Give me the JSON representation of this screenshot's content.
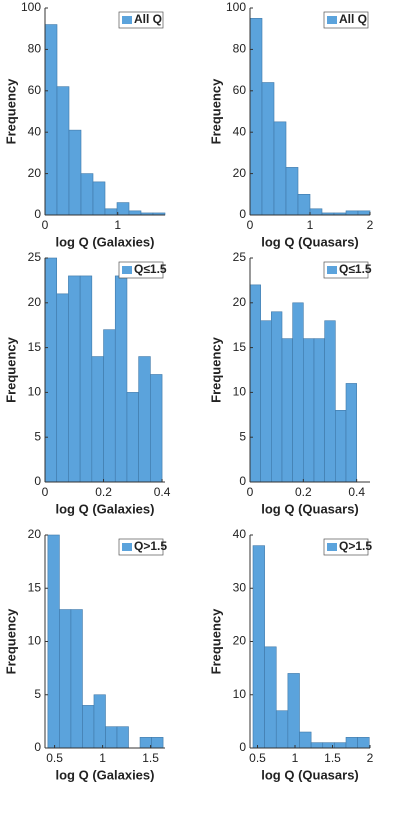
{
  "chart_data": [
    {
      "type": "histogram",
      "xlabel": "log Q (Galaxies)",
      "ylabel": "Frequency",
      "legend": "upper right",
      "bins": [
        0,
        0.165,
        0.33,
        0.495,
        0.66,
        0.825,
        0.99,
        1.155,
        1.32,
        1.485,
        1.65
      ],
      "series": [
        {
          "name": "All Q",
          "color": "#5ba3dc",
          "values": [
            92,
            62,
            41,
            20,
            16,
            3,
            6,
            2,
            1,
            1
          ]
        }
      ],
      "xlim": [
        0,
        1.65
      ],
      "xticks": [
        0,
        1
      ],
      "ylim": [
        0,
        100
      ],
      "yticks": [
        0,
        20,
        40,
        60,
        80,
        100
      ]
    },
    {
      "type": "histogram",
      "xlabel": "log Q (Quasars)",
      "ylabel": "Frequency",
      "legend": "upper right",
      "bins": [
        0,
        0.2,
        0.4,
        0.6,
        0.8,
        1,
        1.2,
        1.4,
        1.6,
        1.8,
        2
      ],
      "series": [
        {
          "name": "All Q",
          "color": "#5ba3dc",
          "values": [
            95,
            64,
            45,
            23,
            10,
            3,
            1,
            1,
            2,
            2
          ]
        }
      ],
      "xlim": [
        0,
        2
      ],
      "xticks": [
        0,
        1,
        2
      ],
      "ylim": [
        0,
        100
      ],
      "yticks": [
        0,
        20,
        40,
        60,
        80,
        100
      ]
    },
    {
      "type": "histogram",
      "xlabel": "log Q (Galaxies)",
      "ylabel": "Frequency",
      "legend": "upper right",
      "bins": [
        0,
        0.04,
        0.08,
        0.12,
        0.16,
        0.2,
        0.24,
        0.28,
        0.32,
        0.36,
        0.4
      ],
      "series": [
        {
          "name": "Q≤1.5",
          "color": "#5ba3dc",
          "values": [
            25,
            21,
            23,
            23,
            14,
            17,
            23,
            10,
            14,
            12
          ]
        }
      ],
      "xlim": [
        0,
        0.41
      ],
      "xticks": [
        0,
        0.2,
        0.4
      ],
      "ylim": [
        0,
        25
      ],
      "yticks": [
        0,
        5,
        10,
        15,
        20,
        25
      ]
    },
    {
      "type": "histogram",
      "xlabel": "log Q (Quasars)",
      "ylabel": "Frequency",
      "legend": "upper right",
      "bins": [
        0,
        0.04,
        0.08,
        0.12,
        0.16,
        0.2,
        0.24,
        0.28,
        0.32,
        0.36,
        0.4
      ],
      "series": [
        {
          "name": "Q≤1.5",
          "color": "#5ba3dc",
          "values": [
            22,
            18,
            19,
            16,
            20,
            16,
            16,
            18,
            8,
            11
          ]
        }
      ],
      "xlim": [
        0,
        0.45
      ],
      "xticks": [
        0,
        0.2,
        0.4
      ],
      "ylim": [
        0,
        25
      ],
      "yticks": [
        0,
        5,
        10,
        15,
        20,
        25
      ]
    },
    {
      "type": "histogram",
      "xlabel": "log Q (Galaxies)",
      "ylabel": "Frequency",
      "legend": "upper right",
      "bins": [
        0.43,
        0.55,
        0.67,
        0.79,
        0.91,
        1.03,
        1.15,
        1.27,
        1.39,
        1.51,
        1.63
      ],
      "series": [
        {
          "name": "Q>1.5",
          "color": "#5ba3dc",
          "values": [
            20,
            13,
            13,
            4,
            5,
            2,
            2,
            0,
            1,
            1
          ]
        }
      ],
      "xlim": [
        0.4,
        1.65
      ],
      "xticks": [
        0.5,
        1,
        1.5
      ],
      "ylim": [
        0,
        20
      ],
      "yticks": [
        0,
        5,
        10,
        15,
        20
      ]
    },
    {
      "type": "histogram",
      "xlabel": "log Q (Quasars)",
      "ylabel": "Frequency",
      "legend": "upper right",
      "bins": [
        0.44,
        0.595,
        0.75,
        0.905,
        1.06,
        1.215,
        1.37,
        1.525,
        1.68,
        1.835,
        1.99
      ],
      "series": [
        {
          "name": "Q>1.5",
          "color": "#5ba3dc",
          "values": [
            38,
            19,
            7,
            14,
            3,
            1,
            1,
            1,
            2,
            2
          ]
        }
      ],
      "xlim": [
        0.4,
        2
      ],
      "xticks": [
        0.5,
        1,
        1.5,
        2
      ],
      "ylim": [
        0,
        40
      ],
      "yticks": [
        0,
        10,
        20,
        30,
        40
      ]
    }
  ]
}
